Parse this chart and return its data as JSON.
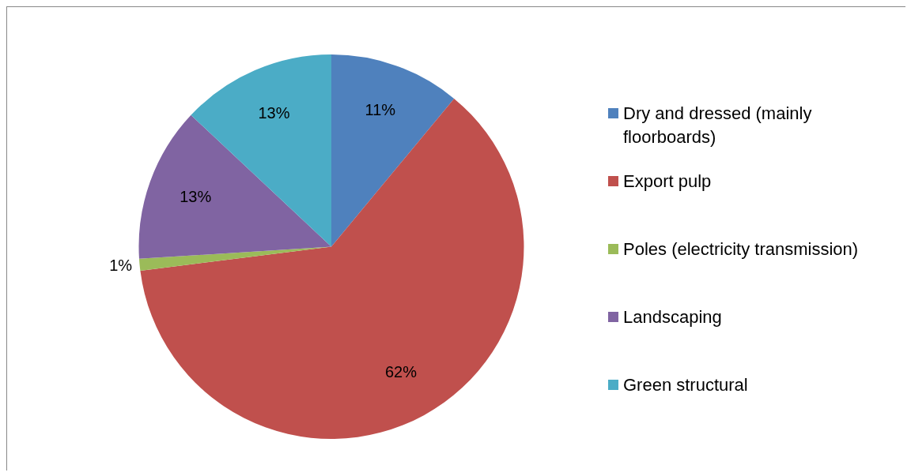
{
  "chart_data": {
    "type": "pie",
    "categories": [
      "Dry and dressed (mainly floorboards)",
      "Export pulp",
      "Poles (electricity transmission)",
      "Landscaping",
      "Green structural"
    ],
    "values": [
      11,
      62,
      1,
      13,
      13
    ],
    "colors": [
      "#4f81bd",
      "#c0504d",
      "#9bbb59",
      "#8064a2",
      "#4bacc6"
    ],
    "value_labels": [
      "11%",
      "62%",
      "1%",
      "13%",
      "13%"
    ],
    "legend": "right"
  }
}
